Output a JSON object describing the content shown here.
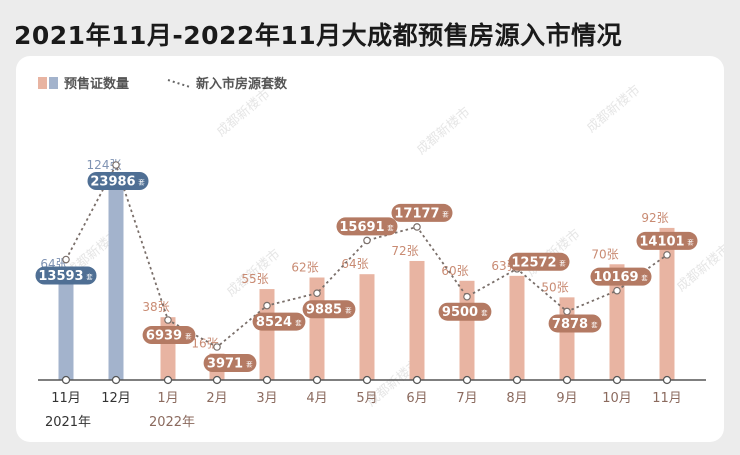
{
  "title": "2021年11月-2022年11月大成都预售房源入市情况",
  "chart_data": {
    "type": "bar",
    "legend_placement": "top-left",
    "categories": [
      "11月",
      "12月",
      "1月",
      "2月",
      "3月",
      "4月",
      "5月",
      "6月",
      "7月",
      "8月",
      "9月",
      "10月",
      "11月"
    ],
    "year_labels": [
      "2021年",
      "2022年"
    ],
    "series": [
      {
        "name": "预售证数量",
        "type": "bar",
        "values": [
          64,
          124,
          38,
          16,
          55,
          62,
          64,
          72,
          60,
          63,
          50,
          70,
          92
        ],
        "labels": [
          "64张",
          "124张",
          "38张",
          "16张",
          "55张",
          "62张",
          "64张",
          "72张",
          "60张",
          "63张",
          "50张",
          "70张",
          "92张"
        ]
      },
      {
        "name": "新入市房源套数",
        "type": "line",
        "values": [
          13593,
          23986,
          6939,
          3971,
          8524,
          9885,
          15691,
          17177,
          9500,
          12572,
          7878,
          10169,
          14101
        ],
        "labels": [
          "13593",
          "23986",
          "6939",
          "3971",
          "8524",
          "9885",
          "15691",
          "17177",
          "9500",
          "12572",
          "7878",
          "10169",
          "14101"
        ],
        "unit": "套"
      }
    ],
    "colors": {
      "bar_2021": "#a3b3cc",
      "bar_2022": "#e8b4a2",
      "bar_label_2021": "#7f93b3",
      "bar_label_2022": "#c98b73",
      "pill_2021": "#4f6f94",
      "pill_2022": "#b47a63",
      "line": "#7a6f6a",
      "axis": "#555555"
    },
    "watermark": "成都新楼市"
  }
}
